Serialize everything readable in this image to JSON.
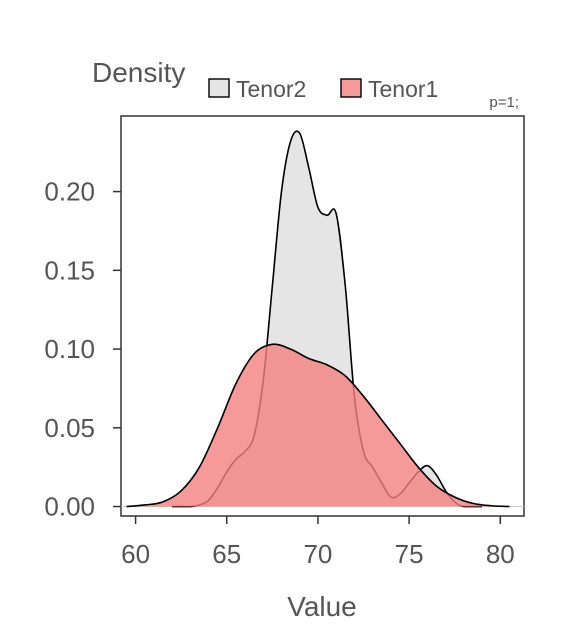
{
  "chart_data": {
    "type": "area",
    "xlabel": "Value",
    "ylabel": "Density",
    "annotation": "p=1;",
    "xlim": [
      59.2,
      81.3
    ],
    "ylim": [
      -0.006,
      0.248
    ],
    "x_ticks": [
      60,
      65,
      70,
      75,
      80
    ],
    "x_tick_labels": [
      "60",
      "65",
      "70",
      "75",
      "80"
    ],
    "y_ticks": [
      0.0,
      0.05,
      0.1,
      0.15,
      0.2
    ],
    "y_tick_labels": [
      "0.00",
      "0.05",
      "0.10",
      "0.15",
      "0.20"
    ],
    "grid": false,
    "legend_position": "top",
    "series": [
      {
        "name": "Tenor2",
        "color": "#e5e5e5",
        "x": [
          62.0,
          63.0,
          63.5,
          64.0,
          64.5,
          65.0,
          65.5,
          66.0,
          66.5,
          67.0,
          67.5,
          68.0,
          68.5,
          69.0,
          69.5,
          70.0,
          70.5,
          71.0,
          71.5,
          72.0,
          72.5,
          73.0,
          73.5,
          74.0,
          74.5,
          75.0,
          75.5,
          76.0,
          76.5,
          77.0,
          77.5,
          78.0,
          79.0
        ],
        "y": [
          0.0,
          0.0,
          0.001,
          0.004,
          0.012,
          0.022,
          0.03,
          0.035,
          0.045,
          0.08,
          0.14,
          0.2,
          0.232,
          0.237,
          0.215,
          0.19,
          0.185,
          0.186,
          0.14,
          0.07,
          0.035,
          0.025,
          0.015,
          0.006,
          0.008,
          0.015,
          0.022,
          0.026,
          0.02,
          0.01,
          0.003,
          0.0,
          0.0
        ]
      },
      {
        "name": "Tenor1",
        "color": "#f4807f",
        "x": [
          59.5,
          60.5,
          61.5,
          62.5,
          63.5,
          64.5,
          65.5,
          66.5,
          67.5,
          68.5,
          69.5,
          70.5,
          71.5,
          72.5,
          73.5,
          74.5,
          75.5,
          76.5,
          77.5,
          78.5,
          79.5,
          80.5
        ],
        "y": [
          0.0,
          0.001,
          0.003,
          0.01,
          0.025,
          0.05,
          0.078,
          0.097,
          0.103,
          0.1,
          0.094,
          0.09,
          0.083,
          0.07,
          0.055,
          0.04,
          0.025,
          0.013,
          0.006,
          0.002,
          0.0005,
          0.0
        ]
      }
    ]
  }
}
